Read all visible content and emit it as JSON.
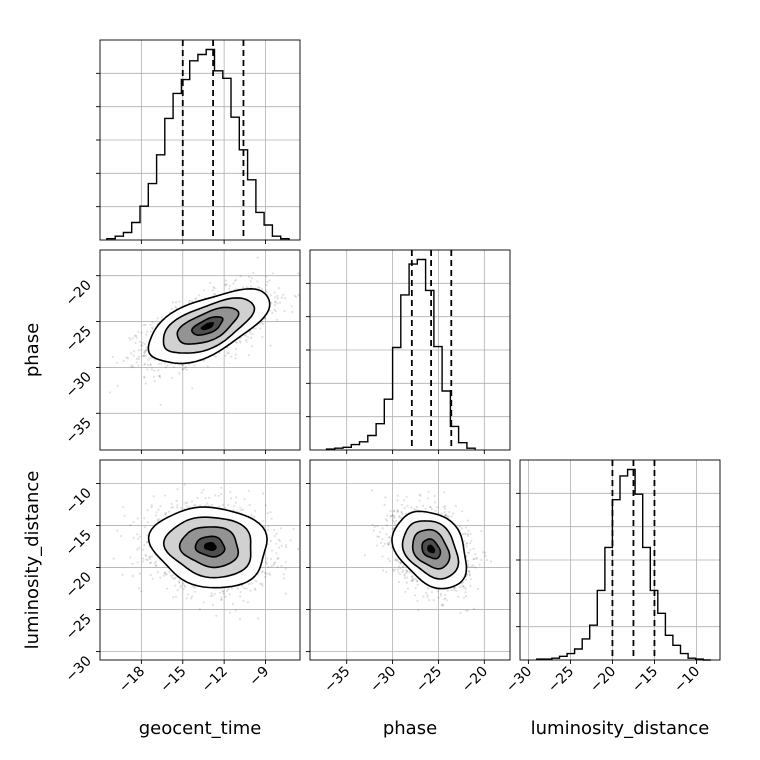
{
  "chart_data": {
    "type": "corner",
    "parameters": [
      {
        "key": "geocent_time",
        "label": "geocent_time",
        "range": [
          -21,
          -6.5
        ],
        "ticks": [
          -18,
          -15,
          -12,
          -9
        ],
        "tick_labels": [
          "−18",
          "−15",
          "−12",
          "−9"
        ],
        "quantiles": [
          -15.0,
          -12.8,
          -10.6
        ],
        "histogram": {
          "bin_edges": [
            -20.5,
            -19.9,
            -19.3,
            -18.7,
            -18.1,
            -17.5,
            -16.9,
            -16.3,
            -15.7,
            -15.1,
            -14.5,
            -13.9,
            -13.3,
            -12.7,
            -12.1,
            -11.5,
            -10.9,
            -10.3,
            -9.7,
            -9.1,
            -8.5,
            -7.9,
            -7.3
          ],
          "counts": [
            1,
            3,
            6,
            14,
            27,
            45,
            68,
            97,
            117,
            128,
            143,
            148,
            152,
            135,
            129,
            98,
            72,
            48,
            22,
            12,
            3,
            1
          ]
        }
      },
      {
        "key": "phase",
        "label": "phase",
        "range": [
          -39,
          -17.2
        ],
        "ticks": [
          -35,
          -30,
          -25,
          -20
        ],
        "tick_labels": [
          "−35",
          "−30",
          "−25",
          "−20"
        ],
        "quantiles": [
          -27.9,
          -25.8,
          -23.6
        ],
        "histogram": {
          "bin_edges": [
            -37.2,
            -36.3,
            -35.4,
            -34.5,
            -33.6,
            -32.7,
            -31.8,
            -30.9,
            -30.0,
            -29.1,
            -28.2,
            -27.3,
            -26.4,
            -25.5,
            -24.6,
            -23.7,
            -22.8,
            -21.9,
            -21.0
          ],
          "counts": [
            1,
            2,
            3,
            6,
            9,
            16,
            29,
            56,
            113,
            171,
            205,
            210,
            176,
            114,
            65,
            26,
            8,
            2
          ]
        }
      },
      {
        "key": "luminosity_distance",
        "label": "luminosity_distance",
        "range": [
          -31,
          -7.2
        ],
        "ticks": [
          -30,
          -25,
          -20,
          -15,
          -10
        ],
        "tick_labels": [
          "−30",
          "−25",
          "−20",
          "−15",
          "−10"
        ],
        "quantiles": [
          -20.0,
          -17.5,
          -15.0
        ],
        "histogram": {
          "bin_edges": [
            -29.0,
            -28.1,
            -27.2,
            -26.3,
            -25.4,
            -24.5,
            -23.6,
            -22.7,
            -21.8,
            -20.9,
            -20.0,
            -19.1,
            -18.2,
            -17.3,
            -16.4,
            -15.5,
            -14.6,
            -13.7,
            -12.8,
            -11.9,
            -11.0,
            -10.1,
            -9.2,
            -8.3
          ],
          "counts": [
            1,
            1,
            2,
            4,
            7,
            12,
            23,
            38,
            76,
            123,
            175,
            201,
            208,
            181,
            123,
            76,
            51,
            27,
            16,
            7,
            2,
            1,
            0
          ]
        }
      }
    ],
    "pairs": [
      {
        "x": "geocent_time",
        "y": "phase",
        "center": [
          -13.2,
          -25.5
        ],
        "sigma": [
          2.2,
          2.0
        ],
        "rho": 0.6
      },
      {
        "x": "geocent_time",
        "y": "luminosity_distance",
        "center": [
          -13.0,
          -17.5
        ],
        "sigma": [
          2.1,
          2.4
        ],
        "rho": -0.1
      },
      {
        "x": "phase",
        "y": "luminosity_distance",
        "center": [
          -25.8,
          -17.8
        ],
        "sigma": [
          2.0,
          2.3
        ],
        "rho": -0.3
      }
    ],
    "contour_levels_sigma": [
      0.5,
      1.0,
      1.5,
      2.0
    ],
    "grid": true
  }
}
